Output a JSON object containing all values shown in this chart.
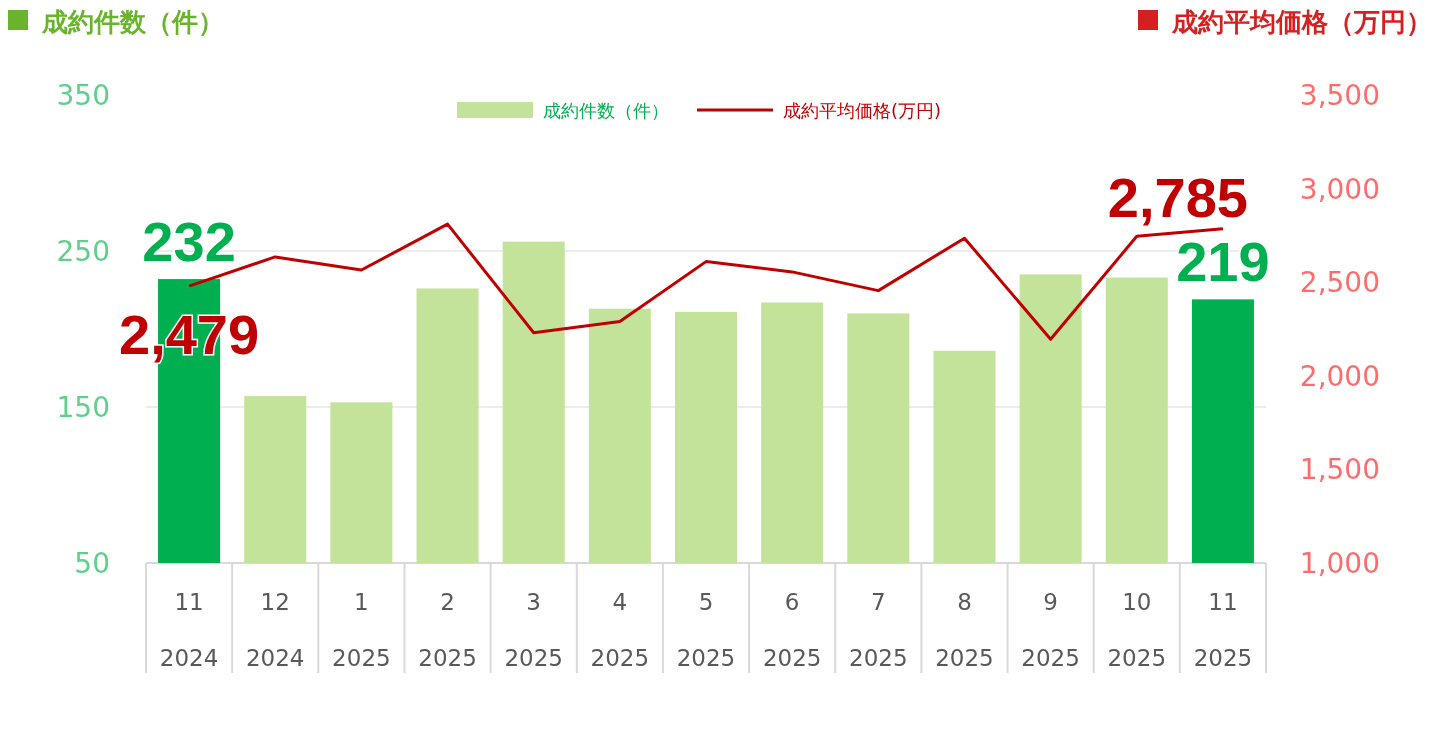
{
  "chart_data": {
    "type": "bar",
    "ylabel": "成約件数（件）",
    "y2label": "成約平均価格（万円）",
    "categories": [
      "11\n2024",
      "12\n2024",
      "1\n2025",
      "2\n2025",
      "3\n2025",
      "4\n2025",
      "5\n2025",
      "6\n2025",
      "7\n2025",
      "8\n2025",
      "9\n2025",
      "10\n2025",
      "11\n2025"
    ],
    "series": [
      {
        "name": "成約件数（件）",
        "color": "#c3e39b",
        "colors": [
          "#00b050",
          "#c3e39b",
          "#c3e39b",
          "#c3e39b",
          "#c3e39b",
          "#c3e39b",
          "#c3e39b",
          "#c3e39b",
          "#c3e39b",
          "#c3e39b",
          "#c3e39b",
          "#c3e39b",
          "#00b050"
        ],
        "values": [
          232,
          157,
          153,
          226,
          256,
          213,
          211,
          217,
          210,
          186,
          235,
          233,
          219
        ],
        "value_labels": [
          "232",
          null,
          null,
          null,
          null,
          null,
          null,
          null,
          null,
          null,
          null,
          null,
          "219"
        ]
      },
      {
        "name": "成約平均価格(万円)",
        "type": "line",
        "axis": "y2",
        "color": "#c00000",
        "values": [
          2479,
          2635,
          2565,
          2810,
          2230,
          2290,
          2610,
          2555,
          2455,
          2735,
          2195,
          2745,
          2785
        ],
        "value_labels": [
          "2,479",
          null,
          null,
          null,
          null,
          null,
          null,
          null,
          null,
          null,
          null,
          null,
          "2,785"
        ]
      }
    ],
    "ylim": [
      50,
      350
    ],
    "yticks": [
      50,
      150,
      250,
      350
    ],
    "y2lim": [
      1000,
      3500
    ],
    "y2ticks": [
      {
        "value": 1000,
        "label": "1,000"
      },
      {
        "value": 1500,
        "label": "1,500"
      },
      {
        "value": 2000,
        "label": "2,000"
      },
      {
        "value": 2500,
        "label": "2,500"
      },
      {
        "value": 3000,
        "label": "3,000"
      },
      {
        "value": 3500,
        "label": "3,500"
      }
    ],
    "grid": "y",
    "legend": "top",
    "marker": "none"
  }
}
